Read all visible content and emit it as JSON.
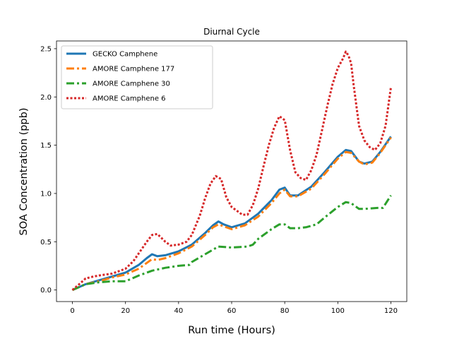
{
  "chart_data": {
    "type": "line",
    "title": "Diurnal Cycle",
    "xlabel": "Run time (Hours)",
    "ylabel": "SOA Concentration (ppb)",
    "xlim": [
      -6,
      126
    ],
    "ylim": [
      -0.12,
      2.58
    ],
    "xticks": [
      0,
      20,
      40,
      60,
      80,
      100,
      120
    ],
    "yticks": [
      0.0,
      0.5,
      1.0,
      1.5,
      2.0,
      2.5
    ],
    "xtick_labels": [
      "0",
      "20",
      "40",
      "60",
      "80",
      "100",
      "120"
    ],
    "ytick_labels": [
      "0.0",
      "0.5",
      "1.0",
      "1.5",
      "2.0",
      "2.5"
    ],
    "legend_position": "top-left",
    "grid": false,
    "series": [
      {
        "name": "GECKO Camphene",
        "color": "#1f77b4",
        "style": "solid",
        "x": [
          0,
          5,
          10,
          15,
          20,
          25,
          28,
          30,
          32,
          35,
          40,
          45,
          50,
          53,
          55,
          57,
          60,
          65,
          70,
          75,
          78,
          80,
          82,
          85,
          90,
          95,
          100,
          103,
          105,
          108,
          110,
          113,
          116,
          120
        ],
        "y": [
          0.0,
          0.06,
          0.1,
          0.14,
          0.18,
          0.26,
          0.33,
          0.37,
          0.35,
          0.36,
          0.4,
          0.47,
          0.59,
          0.67,
          0.71,
          0.68,
          0.65,
          0.69,
          0.79,
          0.93,
          1.04,
          1.06,
          0.98,
          0.98,
          1.07,
          1.22,
          1.38,
          1.45,
          1.44,
          1.33,
          1.31,
          1.33,
          1.43,
          1.59
        ]
      },
      {
        "name": "AMORE Camphene 177",
        "color": "#ff7f0e",
        "style": "dashdot",
        "x": [
          0,
          5,
          10,
          15,
          20,
          25,
          28,
          30,
          32,
          35,
          40,
          45,
          50,
          53,
          55,
          57,
          60,
          65,
          70,
          75,
          78,
          80,
          82,
          85,
          90,
          95,
          100,
          103,
          105,
          108,
          110,
          113,
          116,
          120
        ],
        "y": [
          0.0,
          0.06,
          0.09,
          0.13,
          0.16,
          0.22,
          0.28,
          0.32,
          0.31,
          0.33,
          0.38,
          0.45,
          0.57,
          0.65,
          0.68,
          0.66,
          0.63,
          0.67,
          0.76,
          0.9,
          1.0,
          1.04,
          0.97,
          0.97,
          1.05,
          1.2,
          1.36,
          1.43,
          1.42,
          1.33,
          1.3,
          1.32,
          1.42,
          1.58
        ]
      },
      {
        "name": "AMORE Camphene 30",
        "color": "#2ca02c",
        "style": "dashdot",
        "x": [
          0,
          5,
          10,
          15,
          20,
          25,
          30,
          35,
          40,
          44,
          45,
          50,
          55,
          60,
          66,
          68,
          70,
          75,
          78,
          80,
          82,
          85,
          88,
          92,
          95,
          100,
          103,
          105,
          108,
          110,
          115,
          117,
          120
        ],
        "y": [
          0.0,
          0.06,
          0.08,
          0.09,
          0.09,
          0.15,
          0.2,
          0.23,
          0.25,
          0.26,
          0.29,
          0.37,
          0.45,
          0.44,
          0.45,
          0.47,
          0.53,
          0.63,
          0.68,
          0.68,
          0.64,
          0.64,
          0.65,
          0.68,
          0.75,
          0.86,
          0.91,
          0.9,
          0.84,
          0.84,
          0.85,
          0.85,
          0.98
        ]
      },
      {
        "name": "AMORE Camphene 6",
        "color": "#d62728",
        "style": "dotted",
        "x": [
          0,
          3,
          5,
          8,
          10,
          15,
          20,
          23,
          25,
          28,
          30,
          32,
          35,
          37,
          40,
          43,
          45,
          48,
          50,
          52,
          54,
          56,
          58,
          60,
          62,
          64,
          66,
          68,
          70,
          72,
          74,
          76,
          78,
          80,
          82,
          84,
          86,
          88,
          90,
          92,
          94,
          96,
          98,
          100,
          102,
          103,
          104,
          105,
          106,
          108,
          110,
          112,
          114,
          116,
          118,
          120
        ],
        "y": [
          0.0,
          0.07,
          0.12,
          0.14,
          0.15,
          0.17,
          0.22,
          0.3,
          0.38,
          0.5,
          0.57,
          0.58,
          0.5,
          0.46,
          0.47,
          0.5,
          0.57,
          0.77,
          0.95,
          1.1,
          1.18,
          1.15,
          0.96,
          0.86,
          0.82,
          0.78,
          0.78,
          0.88,
          1.05,
          1.28,
          1.5,
          1.68,
          1.8,
          1.76,
          1.45,
          1.22,
          1.16,
          1.14,
          1.24,
          1.4,
          1.65,
          1.9,
          2.13,
          2.3,
          2.4,
          2.47,
          2.43,
          2.35,
          2.12,
          1.7,
          1.55,
          1.48,
          1.45,
          1.52,
          1.7,
          2.1
        ]
      }
    ]
  }
}
